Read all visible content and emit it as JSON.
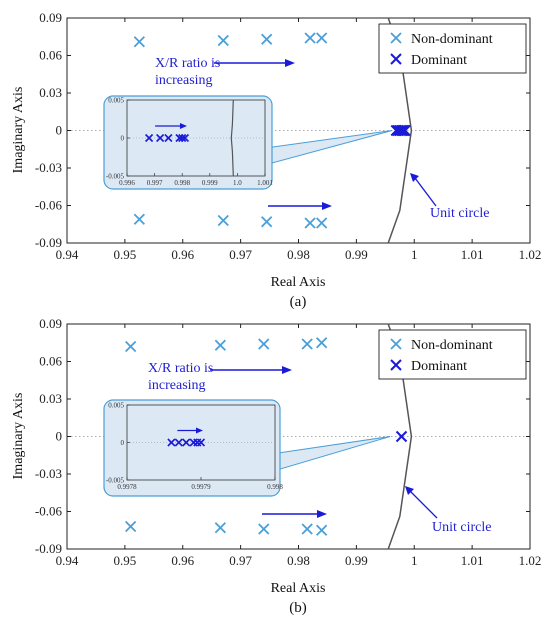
{
  "colors": {
    "non_dominant": "#4a9fd8",
    "dominant": "#1a1ad8",
    "annotation": "#1f1fd0",
    "unit_circle": "#555555",
    "inset_fill": "#dce9f5",
    "inset_border": "#4a9fd8"
  },
  "chart_data": [
    {
      "type": "scatter",
      "caption": "(a)",
      "xlabel": "Real Axis",
      "ylabel": "Imaginary Axis",
      "xlim": [
        0.94,
        1.02
      ],
      "ylim": [
        -0.09,
        0.09
      ],
      "xticks": [
        "0.94",
        "0.95",
        "0.96",
        "0.97",
        "0.98",
        "0.99",
        "1",
        "1.01",
        "1.02"
      ],
      "yticks": [
        "0.09",
        "0.06",
        "0.03",
        "0",
        "-0.03",
        "-0.06",
        "-0.09"
      ],
      "grid": false,
      "legend": {
        "position": "top-right",
        "entries": [
          "Non-dominant",
          "Dominant"
        ]
      },
      "annotations": {
        "ratio_line1": "X/R ratio is",
        "ratio_line2": "increasing",
        "unit_circle": "Unit circle"
      },
      "series": [
        {
          "name": "Non-dominant",
          "points": [
            [
              0.9525,
              0.071
            ],
            [
              0.967,
              0.072
            ],
            [
              0.9745,
              0.073
            ],
            [
              0.982,
              0.074
            ],
            [
              0.984,
              0.074
            ],
            [
              0.9525,
              -0.071
            ],
            [
              0.967,
              -0.072
            ],
            [
              0.9745,
              -0.073
            ],
            [
              0.982,
              -0.074
            ],
            [
              0.984,
              -0.074
            ]
          ]
        },
        {
          "name": "Dominant",
          "points": [
            [
              0.9969,
              0
            ],
            [
              0.9972,
              0
            ],
            [
              0.9975,
              0
            ],
            [
              0.9978,
              0
            ],
            [
              0.998,
              0
            ],
            [
              0.9982,
              0
            ],
            [
              0.9984,
              0
            ]
          ]
        }
      ],
      "unit_circle": [
        [
          0.9955,
          0.09
        ],
        [
          0.9975,
          0.064
        ],
        [
          0.9995,
          0.0
        ],
        [
          0.9975,
          -0.064
        ],
        [
          0.9955,
          -0.09
        ]
      ],
      "inset": {
        "xlim": [
          0.996,
          1.001
        ],
        "ylim": [
          -0.005,
          0.005
        ],
        "xticks": [
          "0.996",
          "0.997",
          "0.998",
          "0.999",
          "1.0",
          "1.001"
        ],
        "yticks": [
          "0.005",
          "0",
          "-0.005"
        ],
        "points": [
          0.9968,
          0.9972,
          0.9975,
          0.9979,
          0.998,
          0.9981
        ],
        "circle": [
          [
            0.99985,
            0.005
          ],
          [
            0.99982,
            0.0018
          ],
          [
            0.99978,
            0.0
          ],
          [
            0.99982,
            -0.0018
          ],
          [
            0.99985,
            -0.005
          ]
        ]
      }
    },
    {
      "type": "scatter",
      "caption": "(b)",
      "xlabel": "Real Axis",
      "ylabel": "Imaginary Axis",
      "xlim": [
        0.94,
        1.02
      ],
      "ylim": [
        -0.09,
        0.09
      ],
      "xticks": [
        "0.94",
        "0.95",
        "0.96",
        "0.97",
        "0.98",
        "0.99",
        "1",
        "1.01",
        "1.02"
      ],
      "yticks": [
        "0.09",
        "0.06",
        "0.03",
        "0",
        "-0.03",
        "-0.06",
        "-0.09"
      ],
      "grid": false,
      "legend": {
        "position": "top-right",
        "entries": [
          "Non-dominant",
          "Dominant"
        ]
      },
      "annotations": {
        "ratio_line1": "X/R ratio is",
        "ratio_line2": "increasing",
        "unit_circle": "Unit circle"
      },
      "series": [
        {
          "name": "Non-dominant",
          "points": [
            [
              0.951,
              0.072
            ],
            [
              0.9665,
              0.073
            ],
            [
              0.974,
              0.074
            ],
            [
              0.9815,
              0.074
            ],
            [
              0.984,
              0.075
            ],
            [
              0.951,
              -0.072
            ],
            [
              0.9665,
              -0.073
            ],
            [
              0.974,
              -0.074
            ],
            [
              0.9815,
              -0.074
            ],
            [
              0.984,
              -0.075
            ]
          ]
        },
        {
          "name": "Dominant",
          "points": [
            [
              0.9978,
              0
            ]
          ]
        }
      ],
      "unit_circle": [
        [
          0.9955,
          0.09
        ],
        [
          0.9975,
          0.064
        ],
        [
          0.9995,
          0.0
        ],
        [
          0.9975,
          -0.064
        ],
        [
          0.9955,
          -0.09
        ]
      ],
      "inset": {
        "xlim": [
          0.9978,
          0.998
        ],
        "ylim": [
          -0.005,
          0.005
        ],
        "xticks": [
          "0.9978",
          "0.9979",
          "0.998"
        ],
        "yticks": [
          "0.005",
          "0",
          "-0.005"
        ],
        "points": [
          0.99786,
          0.99787,
          0.99788,
          0.99789,
          0.997895,
          0.9979
        ],
        "circle": []
      }
    }
  ]
}
